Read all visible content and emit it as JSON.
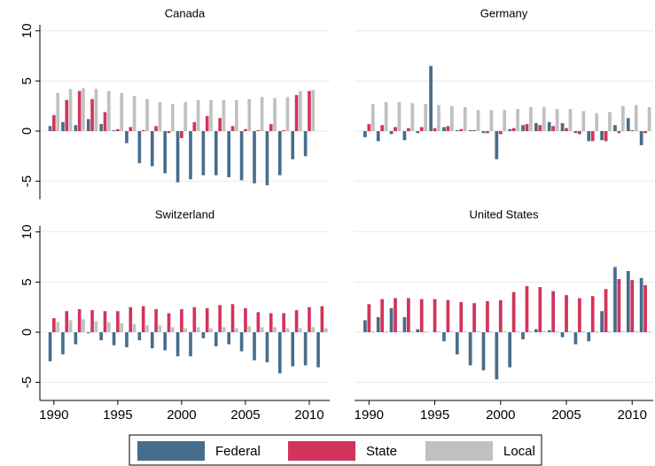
{
  "chart_data": [
    {
      "type": "bar",
      "title": "Canada",
      "x": [
        1990,
        1991,
        1992,
        1993,
        1994,
        1995,
        1996,
        1997,
        1998,
        1999,
        2000,
        2001,
        2002,
        2003,
        2004,
        2005,
        2006,
        2007,
        2008,
        2009,
        2010,
        2011
      ],
      "series": [
        {
          "name": "Federal",
          "color": "#486d8b",
          "values": [
            0.5,
            0.9,
            0.6,
            1.2,
            0.7,
            0.1,
            -1.2,
            -3.2,
            -3.5,
            -4.2,
            -5.1,
            -4.8,
            -4.4,
            -4.4,
            -4.6,
            -4.9,
            -5.2,
            -5.4,
            -4.4,
            -2.8,
            -2.5,
            null
          ]
        },
        {
          "name": "State",
          "color": "#d2345b",
          "values": [
            1.6,
            3.1,
            4.0,
            3.2,
            1.9,
            0.2,
            0.4,
            0.1,
            0.5,
            -0.2,
            -0.7,
            0.9,
            1.5,
            1.3,
            0.5,
            0.2,
            0.1,
            0.7,
            0.1,
            3.6,
            4.0,
            null
          ]
        },
        {
          "name": "Local",
          "color": "#c0c0c0",
          "values": [
            3.8,
            4.2,
            4.3,
            4.2,
            4.0,
            3.8,
            3.5,
            3.2,
            2.9,
            2.7,
            2.9,
            3.1,
            3.1,
            3.1,
            3.1,
            3.2,
            3.4,
            3.3,
            3.4,
            4.0,
            4.1,
            null
          ]
        }
      ],
      "xlim": [
        1988.9,
        2011.6
      ],
      "ylim": [
        -6.8,
        10.6
      ],
      "yticks": [
        -5,
        0,
        5,
        10
      ],
      "grid": true
    },
    {
      "type": "bar",
      "title": "Germany",
      "x": [
        1990,
        1991,
        1992,
        1993,
        1994,
        1995,
        1996,
        1997,
        1998,
        1999,
        2000,
        2001,
        2002,
        2003,
        2004,
        2005,
        2006,
        2007,
        2008,
        2009,
        2010,
        2011
      ],
      "series": [
        {
          "color": "#486d8b",
          "values": [
            -0.6,
            -1.0,
            -0.3,
            -0.9,
            -0.2,
            6.5,
            0.4,
            0.1,
            0.1,
            -0.2,
            -2.8,
            0.2,
            0.6,
            0.8,
            0.9,
            0.8,
            -0.2,
            -1.0,
            -0.9,
            0.6,
            1.3,
            -1.4
          ]
        },
        {
          "color": "#d2345b",
          "values": [
            0.7,
            0.6,
            0.4,
            0.3,
            0.4,
            0.3,
            0.5,
            0.2,
            0.1,
            -0.2,
            -0.3,
            0.3,
            0.7,
            0.6,
            0.5,
            0.3,
            -0.3,
            -1.0,
            -1.0,
            -0.2,
            0.1,
            -0.2
          ]
        },
        {
          "color": "#c0c0c0",
          "values": [
            2.7,
            2.9,
            2.9,
            2.8,
            2.7,
            2.6,
            2.5,
            2.4,
            2.1,
            2.1,
            2.1,
            2.2,
            2.4,
            2.4,
            2.2,
            2.2,
            2.0,
            1.8,
            1.9,
            2.5,
            2.6,
            2.4
          ]
        }
      ],
      "xlim": [
        1988.9,
        2011.6
      ],
      "ylim": [
        -6.8,
        10.6
      ],
      "yticks": [
        -5,
        0,
        5,
        10
      ],
      "grid": true
    },
    {
      "type": "bar",
      "title": "Switzerland",
      "x": [
        1990,
        1991,
        1992,
        1993,
        1994,
        1995,
        1996,
        1997,
        1998,
        1999,
        2000,
        2001,
        2002,
        2003,
        2004,
        2005,
        2006,
        2007,
        2008,
        2009,
        2010,
        2011
      ],
      "series": [
        {
          "color": "#486d8b",
          "values": [
            -2.9,
            -2.2,
            -1.2,
            -0.1,
            -0.8,
            -1.3,
            -1.5,
            -0.8,
            -1.6,
            -1.8,
            -2.4,
            -2.4,
            -0.6,
            -1.4,
            -1.2,
            -1.9,
            -2.8,
            -3.0,
            -4.1,
            -3.4,
            -3.3,
            -3.5
          ]
        },
        {
          "color": "#d2345b",
          "values": [
            1.4,
            2.1,
            2.3,
            2.2,
            2.1,
            2.1,
            2.5,
            2.6,
            2.3,
            1.9,
            2.3,
            2.5,
            2.4,
            2.7,
            2.8,
            2.4,
            2.0,
            1.9,
            1.9,
            2.2,
            2.5,
            2.6
          ]
        },
        {
          "color": "#c0c0c0",
          "values": [
            1.0,
            1.2,
            1.3,
            1.1,
            1.0,
            0.9,
            0.8,
            0.7,
            0.7,
            0.5,
            0.4,
            0.5,
            0.4,
            0.5,
            0.4,
            0.6,
            0.5,
            0.5,
            0.4,
            0.4,
            0.5,
            0.4
          ]
        }
      ],
      "xlim": [
        1988.9,
        2011.6
      ],
      "ylim": [
        -6.8,
        10.6
      ],
      "yticks": [
        -5,
        0,
        5,
        10
      ],
      "xticks": [
        1990,
        1995,
        2000,
        2005,
        2010
      ],
      "grid": true
    },
    {
      "type": "bar",
      "title": "United States",
      "x": [
        1990,
        1991,
        1992,
        1993,
        1994,
        1995,
        1996,
        1997,
        1998,
        1999,
        2000,
        2001,
        2002,
        2003,
        2004,
        2005,
        2006,
        2007,
        2008,
        2009,
        2010,
        2011
      ],
      "series": [
        {
          "color": "#486d8b",
          "values": [
            1.2,
            1.5,
            2.4,
            1.5,
            0.3,
            0.0,
            -0.9,
            -2.2,
            -3.3,
            -3.8,
            -4.7,
            -3.5,
            -0.7,
            0.3,
            0.2,
            -0.5,
            -1.2,
            -0.9,
            2.1,
            6.5,
            6.1,
            5.4
          ]
        },
        {
          "color": "#d2345b",
          "values": [
            2.8,
            3.3,
            3.4,
            3.4,
            3.3,
            3.3,
            3.2,
            3.0,
            2.9,
            3.1,
            3.2,
            4.0,
            4.6,
            4.5,
            4.1,
            3.7,
            3.4,
            3.6,
            4.3,
            5.3,
            5.2,
            4.7
          ]
        },
        {
          "color": "#c0c0c0",
          "values": [
            0.1,
            0.1,
            0.1,
            0.1,
            0.1,
            0.1,
            0.1,
            0.1,
            0.1,
            0.1,
            0.1,
            0.1,
            0.1,
            0.1,
            0.1,
            0.1,
            0.1,
            0.1,
            0.1,
            0.1,
            0.1,
            0.1
          ]
        }
      ],
      "xlim": [
        1988.9,
        2011.6
      ],
      "ylim": [
        -6.8,
        10.6
      ],
      "yticks": [
        -5,
        0,
        5,
        10
      ],
      "xticks": [
        1990,
        1995,
        2000,
        2005,
        2010
      ],
      "grid": true
    }
  ]
}
